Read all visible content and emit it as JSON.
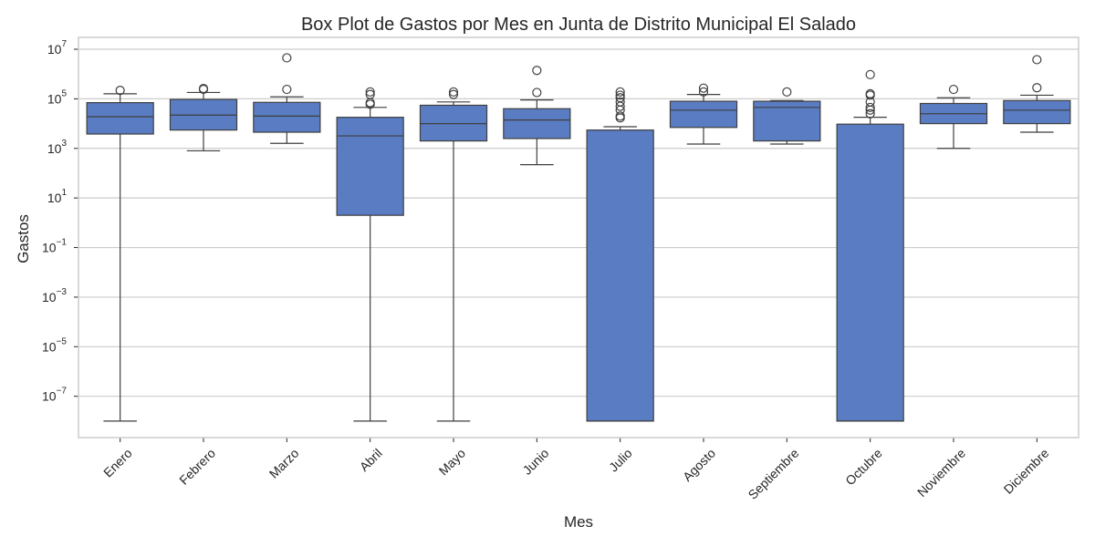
{
  "chart_data": {
    "type": "box",
    "title": "Box Plot de Gastos por Mes en Junta de Distrito Municipal El Salado",
    "xlabel": "Mes",
    "ylabel": "Gastos",
    "yscale": "log",
    "ylim": [
      1e-09,
      20000000.0
    ],
    "yticks": [
      {
        "base": "10",
        "exp": "7",
        "value": 10000000.0
      },
      {
        "base": "10",
        "exp": "5",
        "value": 100000.0
      },
      {
        "base": "10",
        "exp": "3",
        "value": 1000.0
      },
      {
        "base": "10",
        "exp": "1",
        "value": 10.0
      },
      {
        "base": "10",
        "exp": "−1",
        "value": 0.1
      },
      {
        "base": "10",
        "exp": "−3",
        "value": 0.001
      },
      {
        "base": "10",
        "exp": "−5",
        "value": 1e-05
      },
      {
        "base": "10",
        "exp": "−7",
        "value": 1e-07
      }
    ],
    "grid": true,
    "box_color": "#5a7cc2",
    "line_color": "#3f3f3f",
    "categories": [
      "Enero",
      "Febrero",
      "Marzo",
      "Abril",
      "Mayo",
      "Junio",
      "Julio",
      "Agosto",
      "Septiembre",
      "Octubre",
      "Noviembre",
      "Diciembre"
    ],
    "boxes": [
      {
        "whislo": 1e-08,
        "q1": 3800,
        "med": 19000,
        "q3": 70000,
        "whishi": 160000,
        "fliers": [
          220000
        ]
      },
      {
        "whislo": 800,
        "q1": 5500,
        "med": 22000,
        "q3": 95000,
        "whishi": 180000,
        "fliers": [
          240000,
          260000
        ]
      },
      {
        "whislo": 1600,
        "q1": 4500,
        "med": 20000,
        "q3": 72000,
        "whishi": 120000,
        "fliers": [
          240000,
          4500000
        ]
      },
      {
        "whislo": 1e-08,
        "q1": 2,
        "med": 3200,
        "q3": 18000,
        "whishi": 45000,
        "fliers": [
          60000,
          70000,
          150000,
          190000
        ]
      },
      {
        "whislo": 1e-08,
        "q1": 2000,
        "med": 10000,
        "q3": 55000,
        "whishi": 75000,
        "fliers": [
          150000,
          190000
        ]
      },
      {
        "whislo": 220,
        "q1": 2500,
        "med": 14000,
        "q3": 40000,
        "whishi": 90000,
        "fliers": [
          180000,
          1400000
        ]
      },
      {
        "whislo": 1e-08,
        "q1": 1e-08,
        "med": 1e-08,
        "q3": 5500,
        "whishi": 7500,
        "fliers": [
          17000,
          20000,
          35000,
          50000,
          75000,
          110000,
          140000,
          190000
        ]
      },
      {
        "whislo": 1500,
        "q1": 7000,
        "med": 35000,
        "q3": 80000,
        "whishi": 150000,
        "fliers": [
          190000,
          270000
        ]
      },
      {
        "whislo": 1500,
        "q1": 2000,
        "med": 45000,
        "q3": 80000,
        "whishi": 85000,
        "fliers": [
          190000
        ]
      },
      {
        "whislo": 1e-08,
        "q1": 1e-08,
        "med": 1e-08,
        "q3": 9500,
        "whishi": 18000,
        "fliers": [
          25000,
          35000,
          45000,
          75000,
          140000,
          160000,
          950000
        ]
      },
      {
        "whislo": 1000,
        "q1": 10000,
        "med": 25000,
        "q3": 65000,
        "whishi": 110000,
        "fliers": [
          240000
        ]
      },
      {
        "whislo": 4500,
        "q1": 10000,
        "med": 35000,
        "q3": 85000,
        "whishi": 140000,
        "fliers": [
          280000,
          3800000
        ]
      }
    ]
  }
}
